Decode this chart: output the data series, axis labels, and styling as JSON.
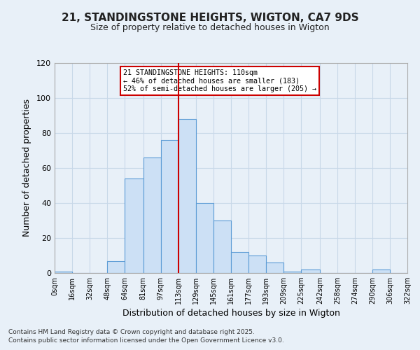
{
  "title": "21, STANDINGSTONE HEIGHTS, WIGTON, CA7 9DS",
  "subtitle": "Size of property relative to detached houses in Wigton",
  "xlabel": "Distribution of detached houses by size in Wigton",
  "ylabel": "Number of detached properties",
  "bar_left_edges": [
    0,
    16,
    32,
    48,
    64,
    81,
    97,
    113,
    129,
    145,
    161,
    177,
    193,
    209,
    225,
    242,
    258,
    274,
    290,
    306
  ],
  "bar_widths": [
    16,
    16,
    16,
    16,
    17,
    16,
    16,
    16,
    16,
    16,
    16,
    16,
    16,
    16,
    17,
    16,
    16,
    16,
    16,
    16
  ],
  "bar_heights": [
    1,
    0,
    0,
    7,
    54,
    66,
    76,
    88,
    40,
    30,
    12,
    10,
    6,
    1,
    2,
    0,
    0,
    0,
    2,
    0
  ],
  "tick_labels": [
    "0sqm",
    "16sqm",
    "32sqm",
    "48sqm",
    "64sqm",
    "81sqm",
    "97sqm",
    "113sqm",
    "129sqm",
    "145sqm",
    "161sqm",
    "177sqm",
    "193sqm",
    "209sqm",
    "225sqm",
    "242sqm",
    "258sqm",
    "274sqm",
    "290sqm",
    "306sqm",
    "322sqm"
  ],
  "tick_positions": [
    0,
    16,
    32,
    48,
    64,
    81,
    97,
    113,
    129,
    145,
    161,
    177,
    193,
    209,
    225,
    242,
    258,
    274,
    290,
    306,
    322
  ],
  "ylim": [
    0,
    120
  ],
  "yticks": [
    0,
    20,
    40,
    60,
    80,
    100,
    120
  ],
  "bar_color": "#cce0f5",
  "bar_edge_color": "#5b9bd5",
  "vline_x": 113,
  "vline_color": "#cc0000",
  "annotation_title": "21 STANDINGSTONE HEIGHTS: 110sqm",
  "annotation_line1": "← 46% of detached houses are smaller (183)",
  "annotation_line2": "52% of semi-detached houses are larger (205) →",
  "annotation_box_color": "#ffffff",
  "annotation_box_edge": "#cc0000",
  "footer1": "Contains HM Land Registry data © Crown copyright and database right 2025.",
  "footer2": "Contains public sector information licensed under the Open Government Licence v3.0.",
  "grid_color": "#c8d8e8",
  "background_color": "#e8f0f8",
  "xlim": [
    0,
    322
  ]
}
